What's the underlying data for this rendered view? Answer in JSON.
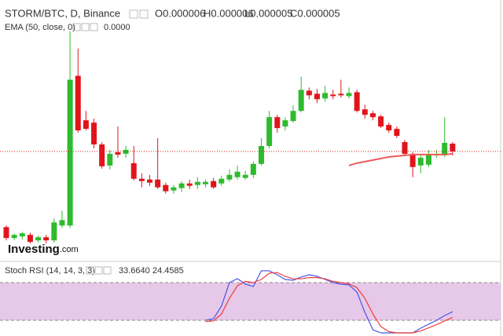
{
  "chart_data": [
    {
      "type": "candlestick",
      "title": "STORM/BTC, D, Binance",
      "ohlc_labels": [
        "O0.000006",
        "H0.000006",
        "L0.000005",
        "C0.000005"
      ],
      "up_color": "#2dbb2d",
      "down_color": "#e0151b",
      "open": [
        4.51e-06,
        4.37e-06,
        4.39e-06,
        4.41e-06,
        4.34e-06,
        4.38e-06,
        4.34e-06,
        4.53e-06,
        4.53e-06,
        6.45e-06,
        5.88e-06,
        5.85e-06,
        5.57e-06,
        5.3e-06,
        5.47e-06,
        5.45e-06,
        5.33e-06,
        5.13e-06,
        5.12e-06,
        5.12e-06,
        5.05e-06,
        4.98e-06,
        5.01e-06,
        5.07e-06,
        5.05e-06,
        5.06e-06,
        5.1e-06,
        5.07e-06,
        5.12e-06,
        5.15e-06,
        5.14e-06,
        5.18e-06,
        5.32e-06,
        5.55e-06,
        5.92e-06,
        5.8e-06,
        5.87e-06,
        6e-06,
        6.26e-06,
        6.22e-06,
        6.16e-06,
        6.21e-06,
        6.22e-06,
        6.19e-06,
        6.24e-06,
        6.02e-06,
        5.97e-06,
        5.93e-06,
        5.82e-06,
        5.77e-06,
        5.6e-06,
        5.45e-06,
        5.3e-06,
        5.31e-06,
        5.43e-06,
        5.43e-06,
        5.58e-06
      ],
      "high": [
        4.53e-06,
        4.43e-06,
        4.45e-06,
        4.44e-06,
        4.4e-06,
        4.41e-06,
        4.62e-06,
        4.72e-06,
        7.02e-06,
        6.8e-06,
        6e-06,
        5.9e-06,
        5.6e-06,
        5.5e-06,
        5.8e-06,
        5.55e-06,
        5.55e-06,
        5.2e-06,
        5.18e-06,
        5.65e-06,
        5.08e-06,
        5.05e-06,
        5.1e-06,
        5.12e-06,
        5.15e-06,
        5.12e-06,
        5.14e-06,
        5.17e-06,
        5.25e-06,
        5.3e-06,
        5.23e-06,
        5.35e-06,
        5.65e-06,
        6e-06,
        5.95e-06,
        5.92e-06,
        6.07e-06,
        6.44e-06,
        6.3e-06,
        6.28e-06,
        6.32e-06,
        6.27e-06,
        6.4e-06,
        6.3e-06,
        6.27e-06,
        6.08e-06,
        6e-06,
        5.95e-06,
        5.85e-06,
        5.8e-06,
        5.63e-06,
        5.47e-06,
        5.44e-06,
        5.5e-06,
        5.5e-06,
        5.92e-06,
        5.6e-06
      ],
      "low": [
        4.34e-06,
        4.34e-06,
        4.35e-06,
        4.3e-06,
        4.31e-06,
        4.3e-06,
        4.31e-06,
        4.5e-06,
        4.5e-06,
        5.72e-06,
        5.75e-06,
        5.52e-06,
        5.26e-06,
        5.25e-06,
        5.4e-06,
        5.4e-06,
        5.11e-06,
        5.02e-06,
        5.04e-06,
        5e-06,
        4.94e-06,
        4.94e-06,
        4.96e-06,
        5e-06,
        5e-06,
        5.02e-06,
        5e-06,
        5.04e-06,
        5.09e-06,
        5.12e-06,
        5.12e-06,
        5.14e-06,
        5.3e-06,
        5.52e-06,
        5.72e-06,
        5.75e-06,
        5.85e-06,
        5.98e-06,
        6.15e-06,
        6.1e-06,
        6.12e-06,
        6.15e-06,
        6.17e-06,
        6.16e-06,
        5.98e-06,
        5.9e-06,
        5.88e-06,
        5.78e-06,
        5.72e-06,
        5.65e-06,
        5.42e-06,
        5.15e-06,
        5.2e-06,
        5.28e-06,
        5.4e-06,
        5.41e-06,
        5.43e-06
      ],
      "close": [
        4.37e-06,
        4.41e-06,
        4.43e-06,
        4.32e-06,
        4.38e-06,
        4.34e-06,
        4.57e-06,
        4.6e-06,
        6.4e-06,
        5.75e-06,
        5.77e-06,
        5.57e-06,
        5.29e-06,
        5.45e-06,
        5.44e-06,
        5.5e-06,
        5.13e-06,
        5.1e-06,
        5.08e-06,
        5.02e-06,
        4.97e-06,
        5.02e-06,
        5.07e-06,
        5.04e-06,
        5.09e-06,
        5.09e-06,
        5.02e-06,
        5.13e-06,
        5.18e-06,
        5.22e-06,
        5.18e-06,
        5.32e-06,
        5.55e-06,
        5.92e-06,
        5.78e-06,
        5.88e-06,
        6e-06,
        6.27e-06,
        6.2e-06,
        6.15e-06,
        6.23e-06,
        6.19e-06,
        6.2e-06,
        6.23e-06,
        6e-06,
        5.95e-06,
        5.92e-06,
        5.8e-06,
        5.75e-06,
        5.68e-06,
        5.45e-06,
        5.28e-06,
        5.4e-06,
        5.44e-06,
        5.45e-06,
        5.59e-06,
        5.48e-06
      ],
      "overlay": {
        "name": "EMA (50, close, 0)",
        "value_label": "0.0000",
        "color": "#f05a5a",
        "values": [
          null,
          null,
          null,
          null,
          null,
          null,
          null,
          null,
          null,
          null,
          null,
          null,
          null,
          null,
          null,
          null,
          null,
          null,
          null,
          null,
          null,
          null,
          null,
          null,
          null,
          null,
          null,
          null,
          null,
          null,
          null,
          null,
          null,
          null,
          null,
          null,
          null,
          null,
          null,
          null,
          null,
          null,
          null,
          5.3e-06,
          5.33e-06,
          5.35e-06,
          5.37e-06,
          5.39e-06,
          5.41e-06,
          5.42e-06,
          5.43e-06,
          5.44e-06,
          5.44e-06,
          5.44e-06,
          5.44e-06,
          5.44e-06,
          5.45e-06
        ]
      },
      "price_line": true,
      "price_line_color": "#d22",
      "ylim": [
        4.08e-06,
        7.1e-06
      ]
    },
    {
      "type": "line",
      "title": "Stoch RSI (14, 14, 3, 3)",
      "series": [
        {
          "color": "#4a55e8",
          "current": "33.6640",
          "values": [
            null,
            null,
            null,
            null,
            null,
            null,
            null,
            null,
            null,
            null,
            null,
            null,
            null,
            null,
            null,
            null,
            null,
            null,
            null,
            null,
            null,
            null,
            null,
            null,
            null,
            20,
            22.5,
            42.5,
            80,
            86.3,
            77.5,
            73.8,
            98.8,
            98.8,
            92.5,
            85,
            83.8,
            88.8,
            92.5,
            90,
            85,
            80,
            77.5,
            76.3,
            65,
            32.5,
            5,
            0,
            0,
            0,
            0,
            0,
            7.5,
            13.8,
            20,
            27.5,
            33.664
          ]
        },
        {
          "color": "#ee3e3e",
          "current": "24.4585",
          "values": [
            null,
            null,
            null,
            null,
            null,
            null,
            null,
            null,
            null,
            null,
            null,
            null,
            null,
            null,
            null,
            null,
            null,
            null,
            null,
            null,
            null,
            null,
            null,
            null,
            null,
            18,
            19,
            30,
            55,
            75,
            82,
            80,
            85,
            95,
            96,
            90,
            86,
            86,
            88,
            88,
            86,
            82,
            80,
            78,
            72,
            55,
            30,
            10,
            2,
            0,
            0,
            0,
            3,
            8,
            13,
            19,
            24.4585
          ]
        }
      ],
      "ylim": [
        0,
        100
      ],
      "levels": [
        20,
        80
      ],
      "band_color": "#e6c8e8"
    }
  ],
  "logo": {
    "brand": "Investing",
    "suffix": ".com"
  }
}
